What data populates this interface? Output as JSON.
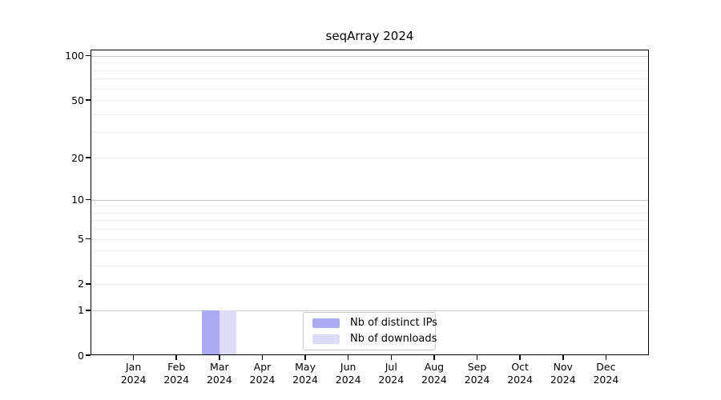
{
  "chart_data": {
    "type": "bar",
    "title": "seqArray 2024",
    "categories": [
      "Jan 2024",
      "Feb 2024",
      "Mar 2024",
      "Apr 2024",
      "May 2024",
      "Jun 2024",
      "Jul 2024",
      "Aug 2024",
      "Sep 2024",
      "Oct 2024",
      "Nov 2024",
      "Dec 2024"
    ],
    "series": [
      {
        "name": "Nb of distinct IPs",
        "color": "#aaaaf2",
        "values": [
          0,
          0,
          1,
          0,
          0,
          0,
          0,
          0,
          0,
          0,
          0,
          0
        ]
      },
      {
        "name": "Nb of downloads",
        "color": "#dcdcf8",
        "values": [
          0,
          0,
          1,
          0,
          0,
          0,
          0,
          0,
          0,
          0,
          0,
          0
        ]
      }
    ],
    "y_ticks": [
      0,
      1,
      2,
      5,
      10,
      20,
      50,
      100
    ],
    "y_scale": "log1p",
    "ylim": [
      0,
      110
    ],
    "xlabel": "",
    "ylabel": "",
    "grid": true,
    "grid_color_major": "#c9c9c9",
    "grid_color_minor": "#efefef",
    "legend_position": "lower-center-inside",
    "bar_group_fraction": 0.8
  }
}
